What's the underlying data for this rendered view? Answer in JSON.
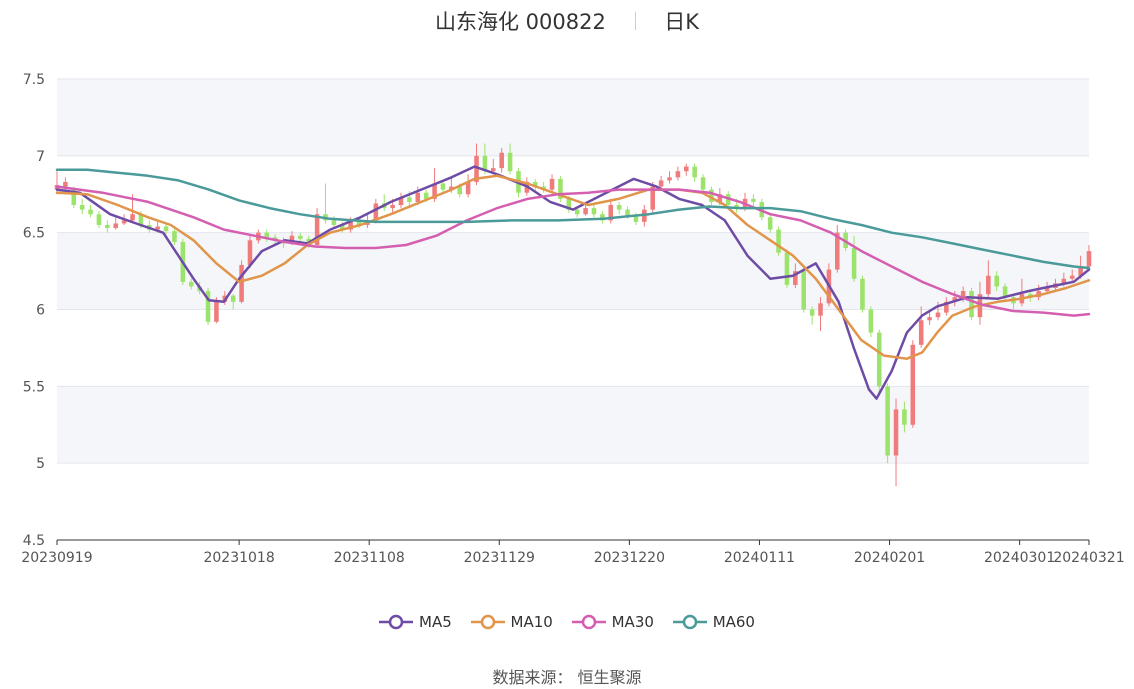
{
  "header": {
    "title": "山东海化 000822",
    "period": "日K"
  },
  "footer": {
    "source_label": "数据来源：",
    "source_name": "恒生聚源"
  },
  "chart_data": {
    "type": "candlestick",
    "ylim": [
      4.5,
      7.5
    ],
    "yticks": [
      4.5,
      5,
      5.5,
      6,
      6.5,
      7,
      7.5
    ],
    "ytick_labels": [
      "4.5",
      "5",
      "5.5",
      "6",
      "6.5",
      "7",
      "7.5"
    ],
    "xtick_labels": [
      "20230919",
      "20231018",
      "20231108",
      "20231129",
      "20231220",
      "20240111",
      "20240201",
      "20240301",
      "20240321"
    ],
    "xtick_index": [
      0,
      21,
      36,
      51,
      66,
      81,
      96,
      111,
      119
    ],
    "colors": {
      "up": "#f07b7b",
      "down": "#9be36a",
      "grid_band": "#f5f6fa",
      "grid_line": "#e3e6ee",
      "axis": "#333333"
    },
    "legend": [
      {
        "name": "MA5",
        "color": "#6e4ca6"
      },
      {
        "name": "MA10",
        "color": "#e0954a"
      },
      {
        "name": "MA30",
        "color": "#d45fb1"
      },
      {
        "name": "MA60",
        "color": "#4a9a9a"
      }
    ],
    "candles": [
      [
        6.78,
        6.81,
        6.9,
        6.75
      ],
      [
        6.8,
        6.83,
        6.86,
        6.78
      ],
      [
        6.78,
        6.68,
        6.8,
        6.66
      ],
      [
        6.68,
        6.65,
        6.72,
        6.62
      ],
      [
        6.65,
        6.62,
        6.68,
        6.6
      ],
      [
        6.62,
        6.55,
        6.64,
        6.53
      ],
      [
        6.55,
        6.53,
        6.58,
        6.5
      ],
      [
        6.53,
        6.56,
        6.6,
        6.52
      ],
      [
        6.56,
        6.58,
        6.62,
        6.55
      ],
      [
        6.58,
        6.62,
        6.75,
        6.56
      ],
      [
        6.62,
        6.55,
        6.64,
        6.53
      ],
      [
        6.55,
        6.52,
        6.58,
        6.5
      ],
      [
        6.52,
        6.54,
        6.57,
        6.5
      ],
      [
        6.54,
        6.51,
        6.56,
        6.49
      ],
      [
        6.51,
        6.44,
        6.53,
        6.42
      ],
      [
        6.44,
        6.18,
        6.46,
        6.16
      ],
      [
        6.18,
        6.15,
        6.2,
        6.13
      ],
      [
        6.15,
        6.12,
        6.18,
        6.1
      ],
      [
        6.12,
        5.92,
        6.14,
        5.9
      ],
      [
        5.92,
        6.05,
        6.08,
        5.91
      ],
      [
        6.05,
        6.09,
        6.12,
        6.03
      ],
      [
        6.09,
        6.05,
        6.1,
        6.0
      ],
      [
        6.05,
        6.29,
        6.32,
        6.04
      ],
      [
        6.29,
        6.45,
        6.48,
        6.27
      ],
      [
        6.45,
        6.5,
        6.52,
        6.43
      ],
      [
        6.5,
        6.47,
        6.52,
        6.44
      ],
      [
        6.47,
        6.45,
        6.49,
        6.42
      ],
      [
        6.45,
        6.43,
        6.47,
        6.4
      ],
      [
        6.43,
        6.48,
        6.51,
        6.42
      ],
      [
        6.48,
        6.46,
        6.5,
        6.44
      ],
      [
        6.46,
        6.42,
        6.48,
        6.4
      ],
      [
        6.42,
        6.62,
        6.66,
        6.4
      ],
      [
        6.62,
        6.58,
        6.82,
        6.56
      ],
      [
        6.58,
        6.55,
        6.61,
        6.53
      ],
      [
        6.55,
        6.52,
        6.57,
        6.5
      ],
      [
        6.52,
        6.57,
        6.6,
        6.5
      ],
      [
        6.57,
        6.55,
        6.6,
        6.53
      ],
      [
        6.55,
        6.58,
        6.62,
        6.53
      ],
      [
        6.58,
        6.69,
        6.72,
        6.56
      ],
      [
        6.69,
        6.66,
        6.75,
        6.64
      ],
      [
        6.66,
        6.68,
        6.72,
        6.63
      ],
      [
        6.68,
        6.73,
        6.76,
        6.66
      ],
      [
        6.73,
        6.7,
        6.77,
        6.67
      ],
      [
        6.7,
        6.76,
        6.8,
        6.68
      ],
      [
        6.76,
        6.72,
        6.78,
        6.7
      ],
      [
        6.72,
        6.82,
        6.92,
        6.7
      ],
      [
        6.82,
        6.78,
        6.84,
        6.76
      ],
      [
        6.78,
        6.8,
        6.86,
        6.76
      ],
      [
        6.8,
        6.75,
        6.82,
        6.73
      ],
      [
        6.75,
        6.83,
        6.88,
        6.73
      ],
      [
        6.83,
        7.0,
        7.08,
        6.81
      ],
      [
        7.0,
        6.9,
        7.08,
        6.88
      ],
      [
        6.9,
        6.92,
        6.98,
        6.88
      ],
      [
        6.92,
        7.02,
        7.05,
        6.89
      ],
      [
        7.02,
        6.9,
        7.08,
        6.88
      ],
      [
        6.9,
        6.76,
        6.92,
        6.73
      ],
      [
        6.76,
        6.83,
        6.86,
        6.74
      ],
      [
        6.83,
        6.8,
        6.85,
        6.77
      ],
      [
        6.8,
        6.78,
        6.83,
        6.76
      ],
      [
        6.78,
        6.85,
        6.88,
        6.76
      ],
      [
        6.85,
        6.72,
        6.87,
        6.7
      ],
      [
        6.72,
        6.65,
        6.74,
        6.63
      ],
      [
        6.65,
        6.62,
        6.67,
        6.6
      ],
      [
        6.62,
        6.66,
        6.7,
        6.61
      ],
      [
        6.66,
        6.62,
        6.68,
        6.6
      ],
      [
        6.62,
        6.58,
        6.64,
        6.56
      ],
      [
        6.58,
        6.68,
        6.72,
        6.56
      ],
      [
        6.68,
        6.65,
        6.7,
        6.62
      ],
      [
        6.65,
        6.61,
        6.67,
        6.59
      ],
      [
        6.61,
        6.57,
        6.63,
        6.55
      ],
      [
        6.57,
        6.65,
        6.68,
        6.54
      ],
      [
        6.65,
        6.8,
        6.83,
        6.63
      ],
      [
        6.8,
        6.84,
        6.87,
        6.78
      ],
      [
        6.84,
        6.86,
        6.9,
        6.82
      ],
      [
        6.86,
        6.9,
        6.93,
        6.84
      ],
      [
        6.9,
        6.93,
        6.95,
        6.87
      ],
      [
        6.93,
        6.86,
        6.95,
        6.83
      ],
      [
        6.86,
        6.78,
        6.88,
        6.76
      ],
      [
        6.78,
        6.7,
        6.8,
        6.68
      ],
      [
        6.7,
        6.75,
        6.79,
        6.68
      ],
      [
        6.75,
        6.68,
        6.77,
        6.66
      ],
      [
        6.68,
        6.66,
        6.72,
        6.63
      ],
      [
        6.66,
        6.72,
        6.76,
        6.64
      ],
      [
        6.72,
        6.7,
        6.75,
        6.67
      ],
      [
        6.7,
        6.6,
        6.72,
        6.58
      ],
      [
        6.6,
        6.52,
        6.62,
        6.5
      ],
      [
        6.52,
        6.37,
        6.54,
        6.35
      ],
      [
        6.37,
        6.16,
        6.39,
        6.14
      ],
      [
        6.16,
        6.25,
        6.3,
        6.14
      ],
      [
        6.25,
        6.0,
        6.27,
        5.98
      ],
      [
        6.0,
        5.96,
        6.02,
        5.9
      ],
      [
        5.96,
        6.04,
        6.08,
        5.86
      ],
      [
        6.04,
        6.26,
        6.3,
        6.02
      ],
      [
        6.26,
        6.5,
        6.55,
        6.24
      ],
      [
        6.5,
        6.4,
        6.52,
        6.38
      ],
      [
        6.4,
        6.2,
        6.48,
        6.18
      ],
      [
        6.2,
        6.0,
        6.22,
        5.98
      ],
      [
        6.0,
        5.85,
        6.02,
        5.82
      ],
      [
        5.85,
        5.5,
        5.87,
        5.45
      ],
      [
        5.5,
        5.05,
        5.52,
        5.0
      ],
      [
        5.05,
        5.35,
        5.42,
        4.85
      ],
      [
        5.35,
        5.25,
        5.4,
        5.2
      ],
      [
        5.25,
        5.77,
        5.8,
        5.23
      ],
      [
        5.77,
        5.93,
        6.02,
        5.75
      ],
      [
        5.93,
        5.95,
        6.0,
        5.9
      ],
      [
        5.95,
        5.98,
        6.05,
        5.93
      ],
      [
        5.98,
        6.05,
        6.08,
        5.96
      ],
      [
        6.05,
        6.08,
        6.12,
        6.02
      ],
      [
        6.08,
        6.12,
        6.15,
        6.05
      ],
      [
        6.12,
        5.95,
        6.14,
        5.93
      ],
      [
        5.95,
        6.1,
        6.18,
        5.9
      ],
      [
        6.1,
        6.22,
        6.32,
        6.08
      ],
      [
        6.22,
        6.15,
        6.25,
        6.12
      ],
      [
        6.15,
        6.08,
        6.17,
        6.05
      ],
      [
        6.08,
        6.04,
        6.1,
        6.0
      ],
      [
        6.04,
        6.1,
        6.2,
        6.02
      ],
      [
        6.1,
        6.08,
        6.13,
        6.05
      ],
      [
        6.08,
        6.12,
        6.16,
        6.06
      ],
      [
        6.12,
        6.14,
        6.18,
        6.1
      ],
      [
        6.14,
        6.17,
        6.2,
        6.12
      ],
      [
        6.17,
        6.2,
        6.24,
        6.15
      ],
      [
        6.2,
        6.22,
        6.26,
        6.18
      ],
      [
        6.22,
        6.28,
        6.35,
        6.2
      ],
      [
        6.28,
        6.38,
        6.42,
        6.25
      ]
    ],
    "ma": {
      "MA5": [
        [
          0,
          6.78
        ],
        [
          3,
          6.76
        ],
        [
          7,
          6.62
        ],
        [
          11,
          6.55
        ],
        [
          14,
          6.5
        ],
        [
          18,
          6.2
        ],
        [
          20,
          6.06
        ],
        [
          22,
          6.05
        ],
        [
          24,
          6.2
        ],
        [
          27,
          6.38
        ],
        [
          30,
          6.45
        ],
        [
          33,
          6.43
        ],
        [
          36,
          6.52
        ],
        [
          40,
          6.6
        ],
        [
          44,
          6.7
        ],
        [
          48,
          6.78
        ],
        [
          52,
          6.86
        ],
        [
          55,
          6.93
        ],
        [
          58,
          6.88
        ],
        [
          62,
          6.8
        ],
        [
          65,
          6.7
        ],
        [
          68,
          6.65
        ],
        [
          72,
          6.75
        ],
        [
          76,
          6.85
        ],
        [
          79,
          6.8
        ],
        [
          82,
          6.72
        ],
        [
          85,
          6.68
        ],
        [
          88,
          6.58
        ],
        [
          91,
          6.35
        ],
        [
          94,
          6.2
        ],
        [
          97,
          6.22
        ],
        [
          100,
          6.3
        ],
        [
          103,
          6.05
        ],
        [
          105,
          5.75
        ],
        [
          107,
          5.48
        ],
        [
          108,
          5.42
        ],
        [
          110,
          5.6
        ],
        [
          112,
          5.85
        ],
        [
          114,
          5.96
        ],
        [
          116,
          6.02
        ],
        [
          118,
          6.05
        ],
        [
          120,
          6.08
        ],
        [
          124,
          6.07
        ],
        [
          128,
          6.12
        ],
        [
          131,
          6.15
        ],
        [
          134,
          6.18
        ],
        [
          136,
          6.26
        ]
      ],
      "MA10": [
        [
          0,
          6.76
        ],
        [
          4,
          6.75
        ],
        [
          8,
          6.68
        ],
        [
          12,
          6.6
        ],
        [
          15,
          6.55
        ],
        [
          18,
          6.45
        ],
        [
          21,
          6.3
        ],
        [
          24,
          6.18
        ],
        [
          27,
          6.22
        ],
        [
          30,
          6.3
        ],
        [
          33,
          6.42
        ],
        [
          36,
          6.5
        ],
        [
          40,
          6.55
        ],
        [
          44,
          6.62
        ],
        [
          48,
          6.7
        ],
        [
          52,
          6.78
        ],
        [
          55,
          6.85
        ],
        [
          58,
          6.87
        ],
        [
          62,
          6.82
        ],
        [
          66,
          6.75
        ],
        [
          70,
          6.68
        ],
        [
          74,
          6.72
        ],
        [
          78,
          6.78
        ],
        [
          82,
          6.78
        ],
        [
          85,
          6.76
        ],
        [
          88,
          6.68
        ],
        [
          91,
          6.55
        ],
        [
          94,
          6.45
        ],
        [
          97,
          6.35
        ],
        [
          100,
          6.2
        ],
        [
          103,
          6.0
        ],
        [
          106,
          5.8
        ],
        [
          109,
          5.7
        ],
        [
          112,
          5.68
        ],
        [
          114,
          5.72
        ],
        [
          116,
          5.85
        ],
        [
          118,
          5.96
        ],
        [
          121,
          6.02
        ],
        [
          124,
          6.05
        ],
        [
          127,
          6.07
        ],
        [
          130,
          6.1
        ],
        [
          133,
          6.14
        ],
        [
          136,
          6.19
        ]
      ],
      "MA30": [
        [
          0,
          6.8
        ],
        [
          6,
          6.76
        ],
        [
          12,
          6.7
        ],
        [
          18,
          6.6
        ],
        [
          22,
          6.52
        ],
        [
          26,
          6.48
        ],
        [
          30,
          6.44
        ],
        [
          34,
          6.41
        ],
        [
          38,
          6.4
        ],
        [
          42,
          6.4
        ],
        [
          46,
          6.42
        ],
        [
          50,
          6.48
        ],
        [
          54,
          6.58
        ],
        [
          58,
          6.66
        ],
        [
          62,
          6.72
        ],
        [
          66,
          6.75
        ],
        [
          70,
          6.76
        ],
        [
          74,
          6.78
        ],
        [
          78,
          6.78
        ],
        [
          82,
          6.78
        ],
        [
          86,
          6.76
        ],
        [
          90,
          6.7
        ],
        [
          94,
          6.62
        ],
        [
          98,
          6.58
        ],
        [
          102,
          6.5
        ],
        [
          106,
          6.38
        ],
        [
          110,
          6.28
        ],
        [
          114,
          6.18
        ],
        [
          118,
          6.1
        ],
        [
          122,
          6.03
        ],
        [
          126,
          5.99
        ],
        [
          130,
          5.98
        ],
        [
          134,
          5.96
        ],
        [
          136,
          5.97
        ]
      ],
      "MA60": [
        [
          0,
          6.91
        ],
        [
          4,
          6.91
        ],
        [
          8,
          6.89
        ],
        [
          12,
          6.87
        ],
        [
          16,
          6.84
        ],
        [
          20,
          6.78
        ],
        [
          24,
          6.71
        ],
        [
          28,
          6.66
        ],
        [
          32,
          6.62
        ],
        [
          36,
          6.59
        ],
        [
          42,
          6.57
        ],
        [
          48,
          6.57
        ],
        [
          54,
          6.57
        ],
        [
          60,
          6.58
        ],
        [
          66,
          6.58
        ],
        [
          72,
          6.59
        ],
        [
          78,
          6.62
        ],
        [
          82,
          6.65
        ],
        [
          86,
          6.67
        ],
        [
          90,
          6.66
        ],
        [
          94,
          6.66
        ],
        [
          98,
          6.64
        ],
        [
          102,
          6.59
        ],
        [
          106,
          6.55
        ],
        [
          110,
          6.5
        ],
        [
          114,
          6.47
        ],
        [
          118,
          6.43
        ],
        [
          122,
          6.39
        ],
        [
          126,
          6.35
        ],
        [
          130,
          6.31
        ],
        [
          134,
          6.28
        ],
        [
          136,
          6.27
        ]
      ]
    }
  }
}
